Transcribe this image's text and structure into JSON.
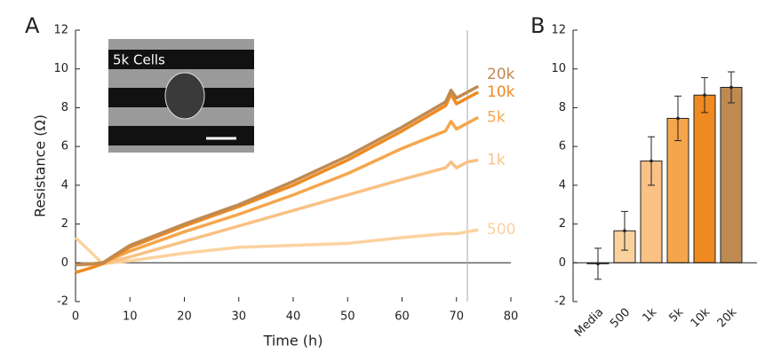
{
  "chart_data": [
    {
      "type": "line",
      "panel": "A",
      "xlabel": "Time (h)",
      "ylabel": "Resistance (Ω)",
      "inset_text": "5k Cells",
      "x": [
        0,
        3,
        5,
        10,
        20,
        30,
        40,
        50,
        60,
        68,
        69,
        70,
        72,
        74
      ],
      "series": [
        {
          "name": "500",
          "color": "#fbd29e",
          "values": [
            1.3,
            0.5,
            -0.05,
            0.1,
            0.5,
            0.8,
            0.9,
            1.0,
            1.3,
            1.5,
            1.5,
            1.5,
            1.6,
            1.7
          ]
        },
        {
          "name": "1k",
          "color": "#f9c184",
          "values": [
            -0.1,
            -0.1,
            -0.05,
            0.3,
            1.1,
            1.9,
            2.7,
            3.5,
            4.3,
            4.9,
            5.2,
            4.9,
            5.2,
            5.3
          ]
        },
        {
          "name": "5k",
          "color": "#f5a64c",
          "values": [
            -0.1,
            -0.05,
            0,
            0.6,
            1.6,
            2.5,
            3.5,
            4.6,
            5.9,
            6.8,
            7.3,
            6.9,
            7.2,
            7.5
          ]
        },
        {
          "name": "10k",
          "color": "#ef8a20",
          "values": [
            -0.5,
            -0.25,
            -0.05,
            0.8,
            1.9,
            2.9,
            4.0,
            5.3,
            6.8,
            8.1,
            8.7,
            8.2,
            8.5,
            8.8
          ]
        },
        {
          "name": "20k",
          "color": "#bf8a52",
          "values": [
            -0.1,
            -0.05,
            0,
            0.9,
            2.0,
            3.0,
            4.2,
            5.5,
            7.0,
            8.3,
            8.9,
            8.5,
            8.8,
            9.1
          ]
        }
      ],
      "vline": 72,
      "xlim": [
        0,
        80
      ],
      "xticks": [
        0,
        10,
        20,
        30,
        40,
        50,
        60,
        70,
        80
      ],
      "ylim": [
        -2,
        12
      ],
      "yticks": [
        -2,
        0,
        2,
        4,
        6,
        8,
        10,
        12
      ]
    },
    {
      "type": "bar",
      "panel": "B",
      "categories": [
        "Media",
        "500",
        "1k",
        "5k",
        "10k",
        "20k"
      ],
      "values": [
        -0.05,
        1.65,
        5.25,
        7.45,
        8.65,
        9.05
      ],
      "errors": [
        0.8,
        1.0,
        1.25,
        1.15,
        0.9,
        0.8
      ],
      "colors": [
        "#ffffff",
        "#fbd29e",
        "#f9c184",
        "#f5a64c",
        "#ef8a20",
        "#bf8a52"
      ],
      "ylim": [
        -2,
        12
      ],
      "yticks": [
        -2,
        0,
        2,
        4,
        6,
        8,
        10,
        12
      ]
    }
  ]
}
